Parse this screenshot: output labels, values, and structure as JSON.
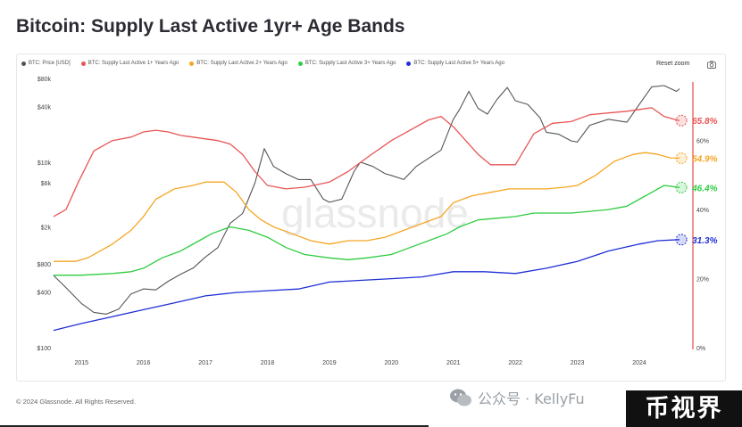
{
  "title": "Bitcoin: Supply Last Active 1yr+ Age Bands",
  "toolbar": {
    "reset_label": "Reset zoom"
  },
  "footer": "© 2024 Glassnode. All Rights Reserved.",
  "watermark": "glassnode",
  "wechat_text": "公众号 · KellyFu",
  "badge_text": "币视界",
  "colors": {
    "price": "#555555",
    "s1": "#e85555",
    "s2": "#f5a623",
    "s3": "#2ecc40",
    "s5": "#1f2fd6",
    "accent_axis": "#e84a4a"
  },
  "chart_data": {
    "type": "line",
    "title": "Bitcoin: Supply Last Active 1yr+ Age Bands",
    "x_ticks": [
      "2015",
      "2016",
      "2017",
      "2018",
      "2019",
      "2020",
      "2021",
      "2022",
      "2023",
      "2024"
    ],
    "xlim": [
      2014.55,
      2024.85
    ],
    "y_left": {
      "scale": "log",
      "ticks": [
        "$80k",
        "$40k",
        "$10k",
        "$6k",
        "$2k",
        "$800",
        "$400",
        "$100"
      ],
      "range": [
        100,
        80000
      ]
    },
    "y_right": {
      "ticks": [
        "60%",
        "40%",
        "20%",
        "0%"
      ],
      "range": [
        0,
        0.78
      ]
    },
    "legend": [
      "BTC: Price [USD]",
      "BTC: Supply Last Active 1+ Years Ago",
      "BTC: Supply Last Active 2+ Years Ago",
      "BTC: Supply Last Active 3+ Years Ago",
      "BTC: Supply Last Active 5+ Years Ago"
    ],
    "series": [
      {
        "name": "BTC: Price [USD]",
        "axis": "left",
        "x": [
          2014.55,
          2014.7,
          2014.85,
          2015.0,
          2015.2,
          2015.4,
          2015.6,
          2015.8,
          2016.0,
          2016.2,
          2016.4,
          2016.6,
          2016.8,
          2017.0,
          2017.2,
          2017.4,
          2017.6,
          2017.8,
          2017.95,
          2018.1,
          2018.3,
          2018.5,
          2018.7,
          2018.9,
          2019.0,
          2019.2,
          2019.4,
          2019.5,
          2019.7,
          2019.9,
          2020.0,
          2020.2,
          2020.4,
          2020.6,
          2020.8,
          2021.0,
          2021.1,
          2021.25,
          2021.4,
          2021.55,
          2021.7,
          2021.87,
          2022.0,
          2022.2,
          2022.4,
          2022.5,
          2022.7,
          2022.9,
          2023.0,
          2023.2,
          2023.5,
          2023.8,
          2024.0,
          2024.2,
          2024.4,
          2024.6,
          2024.65
        ],
        "y": [
          600,
          480,
          380,
          300,
          240,
          230,
          260,
          380,
          430,
          420,
          520,
          620,
          720,
          950,
          1200,
          2200,
          2800,
          6000,
          14000,
          9000,
          7500,
          6500,
          6500,
          4000,
          3700,
          4000,
          8000,
          10000,
          9000,
          7500,
          7200,
          6500,
          9000,
          11000,
          13500,
          29000,
          37000,
          58000,
          38000,
          33000,
          47000,
          64000,
          46000,
          42000,
          30000,
          21000,
          20000,
          17000,
          16500,
          25000,
          29000,
          27000,
          42000,
          65000,
          67000,
          58000,
          62000
        ]
      },
      {
        "name": "BTC: Supply Last Active 1+ Years Ago",
        "axis": "right",
        "end_label": "65.8%",
        "x": [
          2014.55,
          2014.75,
          2014.95,
          2015.2,
          2015.5,
          2015.8,
          2016.0,
          2016.2,
          2016.4,
          2016.6,
          2016.8,
          2017.0,
          2017.2,
          2017.4,
          2017.6,
          2017.8,
          2018.0,
          2018.3,
          2018.6,
          2019.0,
          2019.3,
          2019.6,
          2020.0,
          2020.3,
          2020.6,
          2020.8,
          2021.0,
          2021.2,
          2021.4,
          2021.6,
          2021.8,
          2022.0,
          2022.3,
          2022.6,
          2022.9,
          2023.2,
          2023.5,
          2023.8,
          2024.0,
          2024.2,
          2024.4,
          2024.6,
          2024.65
        ],
        "y": [
          0.38,
          0.4,
          0.48,
          0.57,
          0.6,
          0.61,
          0.625,
          0.63,
          0.625,
          0.615,
          0.61,
          0.605,
          0.6,
          0.59,
          0.56,
          0.51,
          0.47,
          0.46,
          0.465,
          0.48,
          0.51,
          0.55,
          0.6,
          0.63,
          0.66,
          0.67,
          0.64,
          0.6,
          0.56,
          0.53,
          0.53,
          0.53,
          0.62,
          0.65,
          0.655,
          0.675,
          0.68,
          0.685,
          0.69,
          0.695,
          0.67,
          0.66,
          0.658
        ]
      },
      {
        "name": "BTC: Supply Last Active 2+ Years Ago",
        "axis": "right",
        "end_label": "54.9%",
        "x": [
          2014.55,
          2014.9,
          2015.1,
          2015.3,
          2015.5,
          2015.8,
          2016.0,
          2016.2,
          2016.5,
          2016.8,
          2017.0,
          2017.3,
          2017.5,
          2017.7,
          2017.9,
          2018.1,
          2018.4,
          2018.7,
          2019.0,
          2019.3,
          2019.6,
          2019.9,
          2020.2,
          2020.5,
          2020.8,
          2021.0,
          2021.3,
          2021.6,
          2021.9,
          2022.2,
          2022.5,
          2022.8,
          2023.0,
          2023.3,
          2023.6,
          2023.9,
          2024.1,
          2024.3,
          2024.5,
          2024.65
        ],
        "y": [
          0.25,
          0.25,
          0.26,
          0.28,
          0.3,
          0.34,
          0.38,
          0.43,
          0.46,
          0.47,
          0.48,
          0.48,
          0.45,
          0.4,
          0.37,
          0.35,
          0.33,
          0.31,
          0.3,
          0.31,
          0.31,
          0.32,
          0.34,
          0.36,
          0.38,
          0.42,
          0.44,
          0.45,
          0.46,
          0.46,
          0.46,
          0.465,
          0.47,
          0.5,
          0.54,
          0.56,
          0.565,
          0.56,
          0.55,
          0.549
        ]
      },
      {
        "name": "BTC: Supply Last Active 3+ Years Ago",
        "axis": "right",
        "end_label": "46.4%",
        "x": [
          2014.55,
          2015.0,
          2015.5,
          2015.8,
          2016.0,
          2016.3,
          2016.6,
          2016.9,
          2017.1,
          2017.4,
          2017.7,
          2018.0,
          2018.3,
          2018.6,
          2019.0,
          2019.3,
          2019.6,
          2020.0,
          2020.3,
          2020.6,
          2020.9,
          2021.1,
          2021.4,
          2021.7,
          2022.0,
          2022.3,
          2022.6,
          2022.9,
          2023.2,
          2023.5,
          2023.8,
          2024.0,
          2024.2,
          2024.4,
          2024.65
        ],
        "y": [
          0.21,
          0.21,
          0.215,
          0.22,
          0.23,
          0.26,
          0.28,
          0.31,
          0.33,
          0.35,
          0.34,
          0.32,
          0.29,
          0.27,
          0.26,
          0.255,
          0.26,
          0.27,
          0.29,
          0.31,
          0.33,
          0.35,
          0.37,
          0.375,
          0.38,
          0.39,
          0.39,
          0.39,
          0.395,
          0.4,
          0.41,
          0.43,
          0.45,
          0.47,
          0.464
        ]
      },
      {
        "name": "BTC: Supply Last Active 5+ Years Ago",
        "axis": "right",
        "end_label": "31.3%",
        "x": [
          2014.55,
          2015.0,
          2015.5,
          2016.0,
          2016.5,
          2017.0,
          2017.5,
          2018.0,
          2018.5,
          2019.0,
          2019.5,
          2020.0,
          2020.5,
          2021.0,
          2021.5,
          2022.0,
          2022.5,
          2023.0,
          2023.5,
          2024.0,
          2024.3,
          2024.65
        ],
        "y": [
          0.05,
          0.07,
          0.09,
          0.11,
          0.13,
          0.15,
          0.16,
          0.165,
          0.17,
          0.19,
          0.195,
          0.2,
          0.205,
          0.22,
          0.22,
          0.215,
          0.23,
          0.25,
          0.28,
          0.3,
          0.31,
          0.313
        ]
      }
    ]
  }
}
